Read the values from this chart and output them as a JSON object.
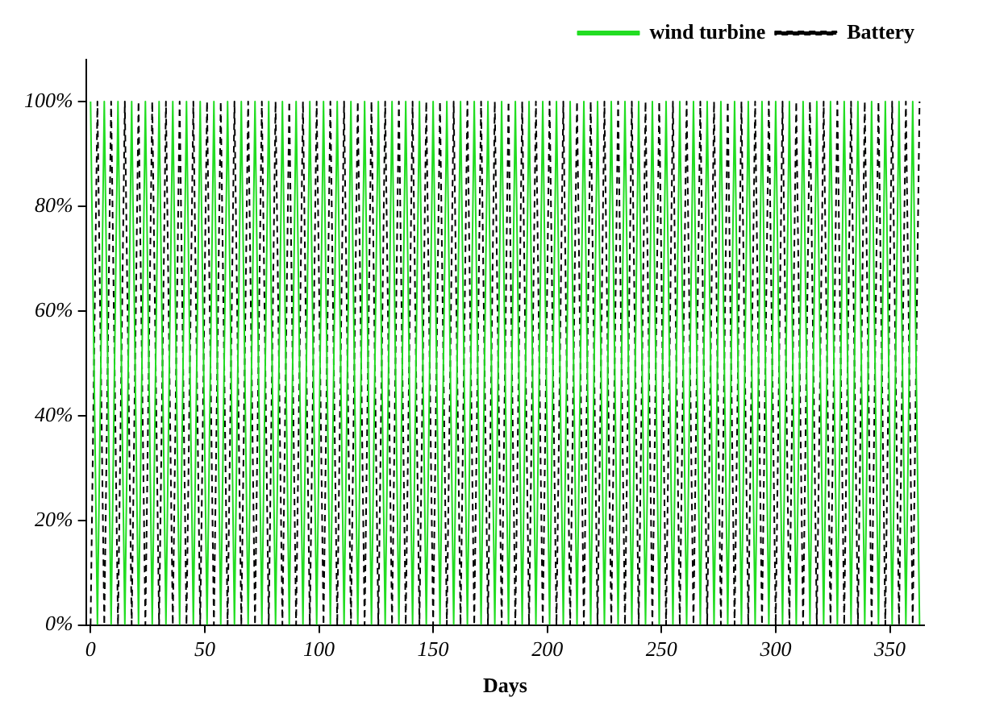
{
  "chart_data": {
    "type": "line",
    "xlabel": "Days",
    "x": [
      0,
      3,
      6,
      9,
      12,
      15,
      18,
      21,
      24,
      27,
      30,
      33,
      36,
      39,
      42,
      45,
      48,
      51,
      54,
      57,
      60,
      63,
      66,
      69,
      72,
      75,
      78,
      81,
      84,
      87,
      90,
      93,
      96,
      99,
      102,
      105,
      108,
      111,
      114,
      117,
      120,
      123,
      126,
      129,
      132,
      135,
      138,
      141,
      144,
      147,
      150,
      153,
      156,
      159,
      162,
      165,
      168,
      171,
      174,
      177,
      180,
      183,
      186,
      189,
      192,
      195,
      198,
      201,
      204,
      207,
      210,
      213,
      216,
      219,
      222,
      225,
      228,
      231,
      234,
      237,
      240,
      243,
      246,
      249,
      252,
      255,
      258,
      261,
      264,
      267,
      270,
      273,
      276,
      279,
      282,
      285,
      288,
      291,
      294,
      297,
      300,
      303,
      306,
      309,
      312,
      315,
      318,
      321,
      324,
      327,
      330,
      333,
      336,
      339,
      342,
      345,
      348,
      351,
      354,
      357,
      360,
      363
    ],
    "series": [
      {
        "name": "wind turbine",
        "color": "#22dd22",
        "line_style": "solid",
        "values": [
          100,
          0,
          100,
          0,
          100,
          0,
          100,
          0,
          100,
          0,
          100,
          0,
          100,
          0,
          100,
          0,
          100,
          0,
          100,
          0,
          100,
          0,
          100,
          0,
          100,
          0,
          100,
          0,
          100,
          0,
          100,
          0,
          100,
          0,
          100,
          0,
          100,
          0,
          100,
          0,
          100,
          0,
          100,
          0,
          100,
          0,
          100,
          0,
          100,
          0,
          100,
          0,
          100,
          0,
          100,
          0,
          100,
          0,
          100,
          0,
          100,
          0,
          100,
          0,
          100,
          0,
          100,
          0,
          100,
          0,
          100,
          0,
          100,
          0,
          100,
          0,
          100,
          0,
          100,
          0,
          100,
          0,
          100,
          0,
          100,
          0,
          100,
          0,
          100,
          0,
          100,
          0,
          100,
          0,
          100,
          0,
          100,
          0,
          100,
          0,
          100,
          0,
          100,
          0,
          100,
          0,
          100,
          0,
          100,
          0,
          100,
          0,
          100,
          0,
          100,
          0,
          100,
          0,
          100,
          0,
          100,
          0
        ]
      },
      {
        "name": "Battery",
        "color": "#000000",
        "line_style": "dashed",
        "values": [
          0,
          100,
          0,
          100,
          0,
          100,
          0,
          100,
          0,
          100,
          0,
          100,
          0,
          100,
          0,
          100,
          0,
          100,
          0,
          100,
          0,
          100,
          0,
          100,
          0,
          100,
          0,
          100,
          0,
          100,
          0,
          100,
          0,
          100,
          0,
          100,
          0,
          100,
          0,
          100,
          0,
          100,
          0,
          100,
          0,
          100,
          0,
          100,
          0,
          100,
          0,
          100,
          0,
          100,
          0,
          100,
          0,
          100,
          0,
          100,
          0,
          100,
          0,
          100,
          0,
          100,
          0,
          100,
          0,
          100,
          0,
          100,
          0,
          100,
          0,
          100,
          0,
          100,
          0,
          100,
          0,
          100,
          0,
          100,
          0,
          100,
          0,
          100,
          0,
          100,
          0,
          100,
          0,
          100,
          0,
          100,
          0,
          100,
          0,
          100,
          0,
          100,
          0,
          100,
          0,
          100,
          0,
          100,
          0,
          100,
          0,
          100,
          0,
          100,
          0,
          100,
          0,
          100,
          0,
          100,
          0,
          100
        ]
      }
    ],
    "xlim": [
      -2,
      365
    ],
    "xticks": [
      0,
      50,
      100,
      150,
      200,
      250,
      300,
      350
    ],
    "ylim": [
      0,
      108
    ],
    "yticks": [
      {
        "value": 0,
        "label": "0%"
      },
      {
        "value": 20,
        "label": "20%"
      },
      {
        "value": 40,
        "label": "40%"
      },
      {
        "value": 60,
        "label": "60%"
      },
      {
        "value": 80,
        "label": "80%"
      },
      {
        "value": 100,
        "label": "100%"
      }
    ],
    "grid": false,
    "legend": "top right",
    "marker": "none"
  }
}
